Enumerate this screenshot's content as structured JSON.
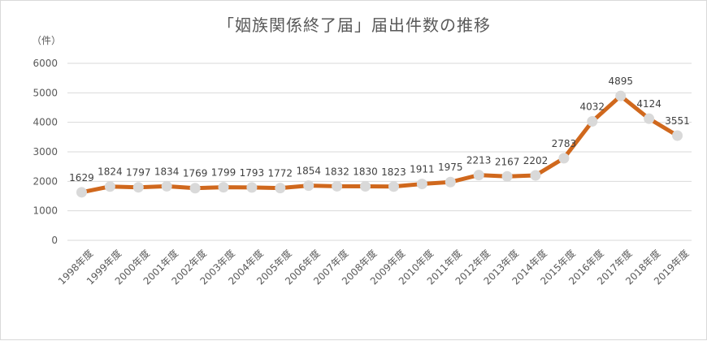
{
  "chart_data": {
    "type": "line",
    "title": "「姻族関係終了届」届出件数の推移",
    "unit_label": "（件）",
    "ylim": [
      0,
      6000
    ],
    "yticks": [
      0,
      1000,
      2000,
      3000,
      4000,
      5000,
      6000
    ],
    "grid": true,
    "categories": [
      "1998年度",
      "1999年度",
      "2000年度",
      "2001年度",
      "2002年度",
      "2003年度",
      "2004年度",
      "2005年度",
      "2006年度",
      "2007年度",
      "2008年度",
      "2009年度",
      "2010年度",
      "2011年度",
      "2012年度",
      "2013年度",
      "2014年度",
      "2015年度",
      "2016年度",
      "2017年度",
      "2018年度",
      "2019年度"
    ],
    "values": [
      1629,
      1824,
      1797,
      1834,
      1769,
      1799,
      1793,
      1772,
      1854,
      1832,
      1830,
      1823,
      1911,
      1975,
      2213,
      2167,
      2202,
      2783,
      4032,
      4895,
      4124,
      3551
    ],
    "colors": {
      "line": "#d0681d",
      "marker": "#d9d9d9",
      "grid": "#d9d9d9",
      "text": "#595959"
    }
  }
}
